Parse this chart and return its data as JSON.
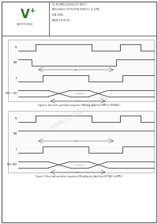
{
  "title_line1": "VL-PS-MDLS-60263-01 REV C",
  "title_line2": "(MDLS-60263-C-HT-HV-FSTN-LED3G-TG-12-12PN)",
  "title_line3": "E/N 2066",
  "title_line4": "PAGE 10 OF 25",
  "fig2_caption": "Figure 2. Bus write operation sequence (Writing data from MPU to NT3881.)",
  "fig3_caption": "Figure 3. Bus read operation sequence (Reading out data from NT3881 to MPU.)",
  "bg_color": "#ffffff",
  "signal_color": "#333333",
  "logo_green": "#2d7a2d",
  "diagram_signal_labels_write": [
    "RS",
    "R/W",
    "E",
    "DB0 ~ DB7"
  ],
  "diagram_signal_labels_read": [
    "RS",
    "R/W",
    "E",
    "DB0~DB7"
  ]
}
